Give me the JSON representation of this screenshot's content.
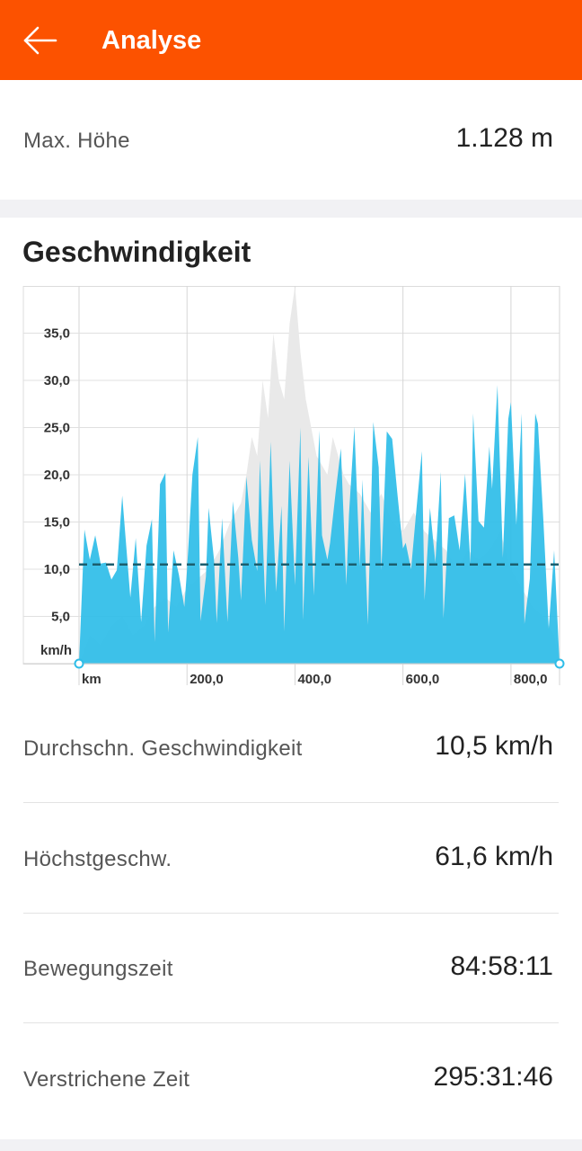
{
  "header": {
    "title": "Analyse",
    "bg_color": "#fc5200"
  },
  "summary": {
    "max_height_label": "Max. Höhe",
    "max_height_value": "1.128 m"
  },
  "speed_section": {
    "title": "Geschwindigkeit",
    "stats": [
      {
        "label": "Durchschn. Geschwindigkeit",
        "value": "10,5 km/h"
      },
      {
        "label": "Höchstgeschw.",
        "value": "61,6 km/h"
      },
      {
        "label": "Bewegungszeit",
        "value": "84:58:11"
      },
      {
        "label": "Verstrichene Zeit",
        "value": "295:31:46"
      }
    ]
  },
  "chart_data": {
    "type": "area",
    "ylabel": "km/h",
    "xlabel": "km",
    "y_ticks": [
      "5,0",
      "10,0",
      "15,0",
      "20,0",
      "25,0",
      "30,0",
      "35,0"
    ],
    "x_ticks": [
      "200,0",
      "400,0",
      "600,0",
      "800,0"
    ],
    "y_tick_values": [
      5,
      10,
      15,
      20,
      25,
      30,
      35
    ],
    "x_tick_values": [
      200,
      400,
      600,
      800
    ],
    "xlim": [
      0,
      890
    ],
    "ylim": [
      0,
      40
    ],
    "average_speed": 10.5,
    "speed_color": "#2ebde8",
    "elevation_color": "#e9e9e9",
    "average_line_color": "#1b5e6e",
    "grid": true,
    "speed_series": {
      "x": [
        0,
        10,
        20,
        30,
        40,
        50,
        60,
        70,
        80,
        95,
        105,
        115,
        125,
        135,
        140,
        150,
        160,
        165,
        175,
        185,
        195,
        200,
        210,
        220,
        225,
        235,
        240,
        250,
        255,
        265,
        275,
        285,
        295,
        300,
        310,
        320,
        330,
        335,
        345,
        355,
        360,
        365,
        375,
        380,
        390,
        400,
        410,
        415,
        425,
        435,
        445,
        450,
        460,
        465,
        475,
        485,
        495,
        500,
        510,
        520,
        525,
        535,
        545,
        555,
        560,
        570,
        580,
        590,
        600,
        605,
        615,
        625,
        635,
        640,
        650,
        660,
        670,
        675,
        685,
        695,
        705,
        715,
        725,
        730,
        740,
        750,
        760,
        765,
        775,
        785,
        795,
        800,
        810,
        820,
        825,
        835,
        845,
        850,
        860,
        870,
        880,
        890
      ],
      "y": [
        0,
        14.2,
        11,
        13.6,
        10.6,
        10.7,
        8.9,
        9.9,
        17.8,
        7,
        13.3,
        4.4,
        12.5,
        15.3,
        2.3,
        19,
        20.2,
        3.3,
        12,
        9.4,
        6,
        9.9,
        20,
        24,
        4.5,
        9.2,
        16.5,
        11,
        4.3,
        15.4,
        4.4,
        17.2,
        11.2,
        6.7,
        19.8,
        13.1,
        9.8,
        21.5,
        6.2,
        23.5,
        14.7,
        7.6,
        16.7,
        3.4,
        21.5,
        8.3,
        25,
        4.6,
        21.9,
        7.2,
        24.7,
        13.6,
        11,
        12.8,
        18,
        22.8,
        8.3,
        15.8,
        25.1,
        10.3,
        19.5,
        4.1,
        25.6,
        20.8,
        9.9,
        24.6,
        23.8,
        17.8,
        12.2,
        12.8,
        10,
        16.4,
        22.5,
        6.7,
        16.5,
        10.7,
        20.3,
        4.8,
        15.4,
        15.7,
        12,
        20.1,
        10.6,
        26.5,
        15.1,
        14.4,
        23,
        18.5,
        29.5,
        11.2,
        25.9,
        27.7,
        14.7,
        26.5,
        4.2,
        9,
        26.5,
        25.4,
        15.2,
        3.7,
        12,
        0
      ]
    },
    "elevation_series": {
      "x": [
        0,
        20,
        40,
        60,
        80,
        100,
        120,
        140,
        160,
        180,
        200,
        220,
        240,
        260,
        280,
        300,
        310,
        320,
        330,
        340,
        350,
        360,
        370,
        380,
        390,
        400,
        410,
        420,
        430,
        440,
        450,
        460,
        470,
        480,
        490,
        500,
        520,
        540,
        560,
        580,
        600,
        620,
        640,
        660,
        680,
        700,
        720,
        740,
        760,
        780,
        800,
        820,
        840,
        860,
        880,
        890
      ],
      "y": [
        0,
        3,
        2,
        4,
        5,
        3,
        4,
        6,
        7,
        6,
        8,
        9,
        10,
        12,
        15,
        17,
        20,
        24,
        22,
        30,
        26,
        35,
        30,
        28,
        36,
        40,
        33,
        28,
        25,
        22,
        21,
        20,
        24,
        22,
        20,
        19,
        18,
        16,
        18,
        15,
        14,
        16,
        14,
        13,
        12,
        10,
        12,
        11,
        12,
        14,
        10,
        8,
        6,
        5,
        3,
        0
      ]
    }
  }
}
